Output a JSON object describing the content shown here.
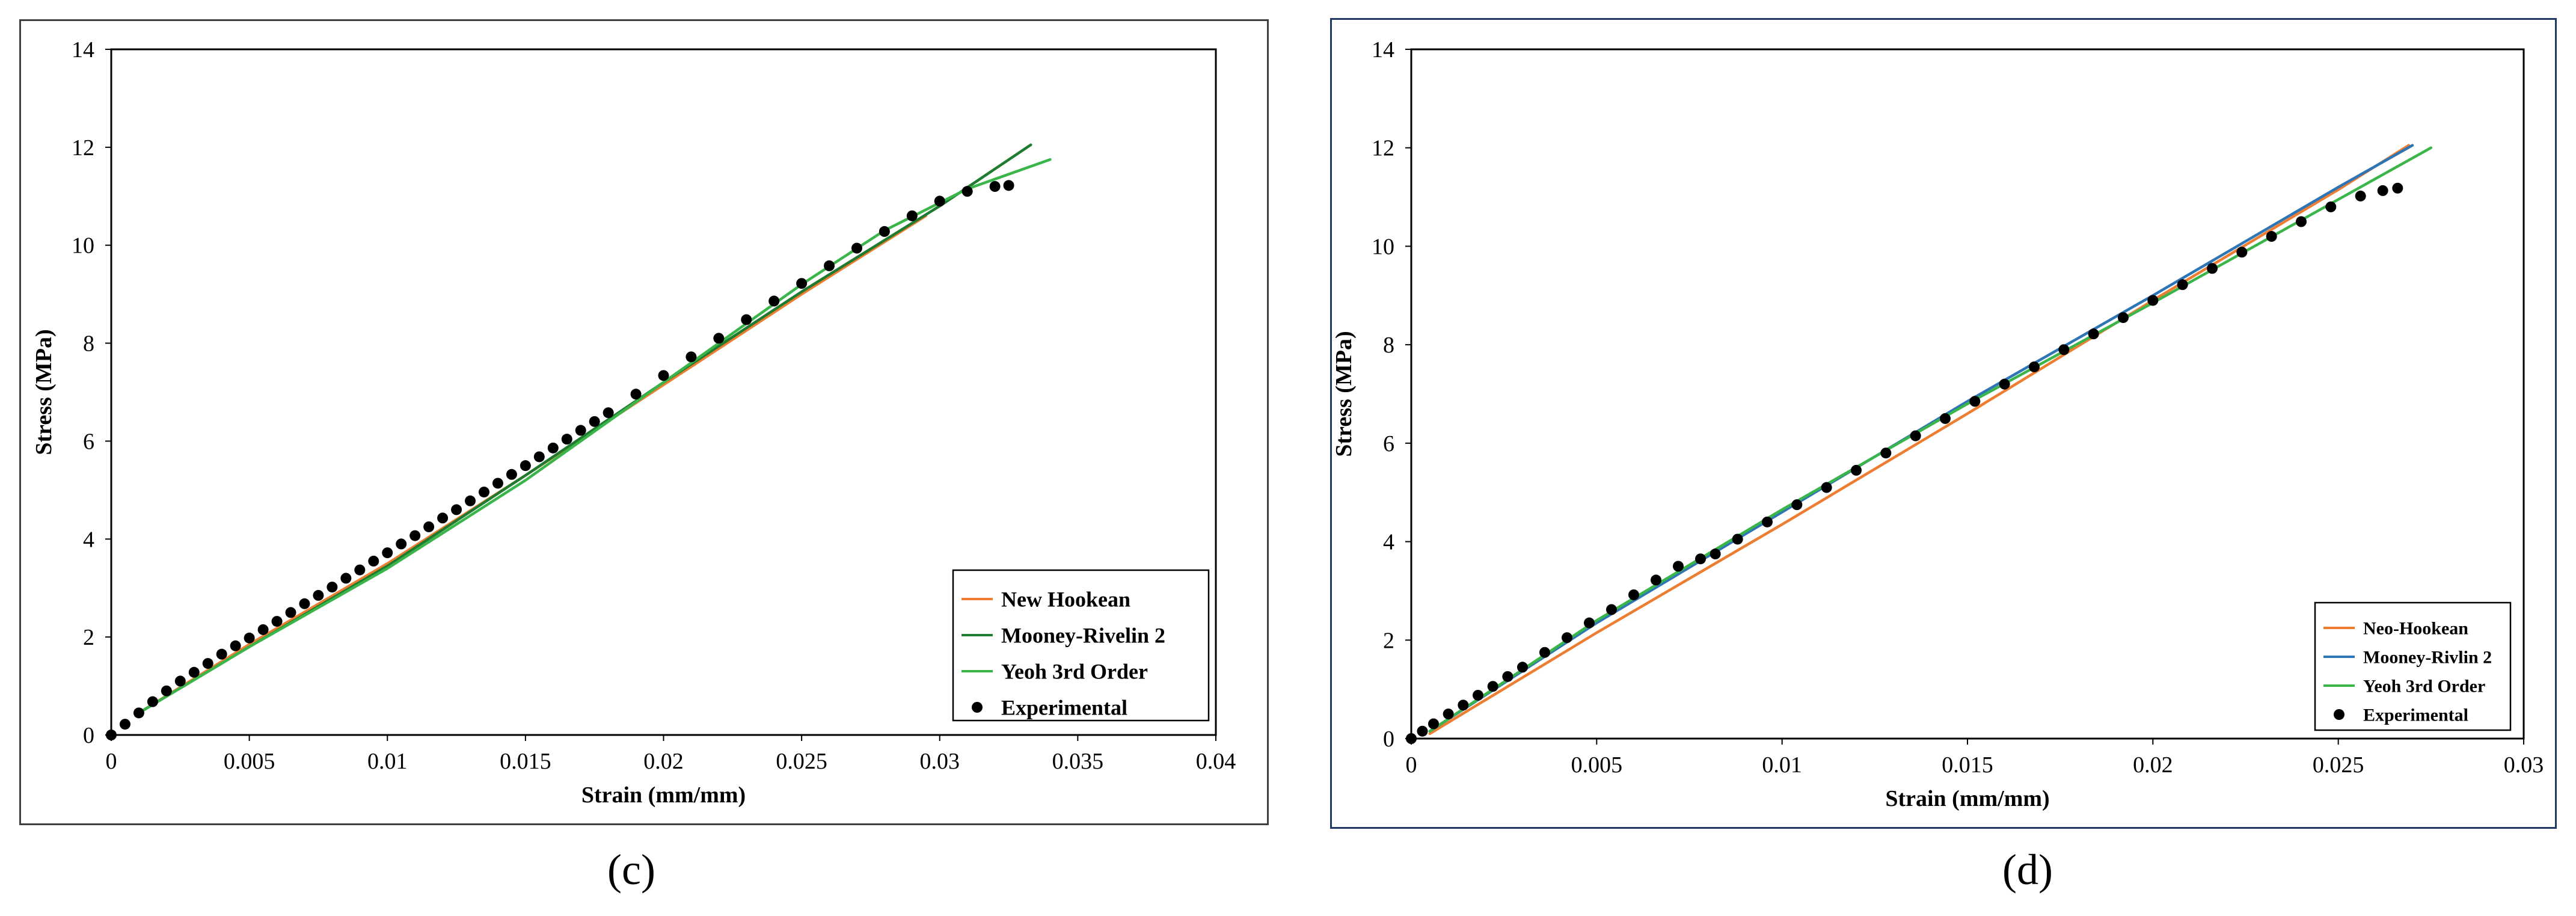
{
  "panels": [
    {
      "id": "c",
      "label": "(c)",
      "chart_data": {
        "type": "line",
        "xlabel": "Strain (mm/mm)",
        "ylabel": "Stress (MPa)",
        "xlim": [
          0,
          0.04
        ],
        "ylim": [
          0,
          14
        ],
        "xticks": [
          "0",
          "0.005",
          "0.01",
          "0.015",
          "0.02",
          "0.025",
          "0.03",
          "0.035",
          "0.04"
        ],
        "yticks": [
          "0",
          "2",
          "4",
          "6",
          "8",
          "10",
          "12",
          "14"
        ],
        "grid": false,
        "legend_position": "bottom-right",
        "series": [
          {
            "name": "New Hookean",
            "kind": "line",
            "color": "#ed7d31",
            "x": [
              0.001,
              0.005,
              0.01,
              0.015,
              0.02,
              0.025,
              0.0295
            ],
            "y": [
              0.45,
              1.85,
              3.5,
              5.3,
              7.15,
              9.0,
              10.6
            ]
          },
          {
            "name": "Mooney-Rivelin 2",
            "kind": "line",
            "color": "#1e7b30",
            "x": [
              0.001,
              0.005,
              0.01,
              0.015,
              0.02,
              0.025,
              0.03,
              0.0333
            ],
            "y": [
              0.45,
              1.8,
              3.45,
              5.3,
              7.2,
              9.05,
              10.8,
              12.05
            ]
          },
          {
            "name": "Yeoh 3rd Order",
            "kind": "line",
            "color": "#3ab54a",
            "x": [
              0.001,
              0.005,
              0.01,
              0.015,
              0.02,
              0.025,
              0.028,
              0.031,
              0.034
            ],
            "y": [
              0.45,
              1.8,
              3.4,
              5.2,
              7.2,
              9.2,
              10.3,
              11.15,
              11.75
            ]
          },
          {
            "name": "Experimental",
            "kind": "scatter",
            "color": "#000000",
            "x": [
              0,
              0.0005,
              0.001,
              0.0015,
              0.002,
              0.0025,
              0.003,
              0.0035,
              0.004,
              0.0045,
              0.005,
              0.0055,
              0.006,
              0.0065,
              0.007,
              0.0075,
              0.008,
              0.0085,
              0.009,
              0.0095,
              0.01,
              0.0105,
              0.011,
              0.0115,
              0.012,
              0.0125,
              0.013,
              0.0135,
              0.014,
              0.0145,
              0.015,
              0.0155,
              0.016,
              0.0165,
              0.017,
              0.0175,
              0.018,
              0.019,
              0.02,
              0.021,
              0.022,
              0.023,
              0.024,
              0.025,
              0.026,
              0.027,
              0.028,
              0.029,
              0.03,
              0.031,
              0.032,
              0.0325
            ],
            "y": [
              0,
              0.22,
              0.45,
              0.68,
              0.9,
              1.1,
              1.28,
              1.46,
              1.65,
              1.82,
              1.98,
              2.15,
              2.32,
              2.5,
              2.68,
              2.85,
              3.02,
              3.2,
              3.37,
              3.55,
              3.72,
              3.9,
              4.07,
              4.25,
              4.43,
              4.6,
              4.78,
              4.96,
              5.14,
              5.32,
              5.5,
              5.68,
              5.86,
              6.04,
              6.22,
              6.4,
              6.58,
              6.96,
              7.34,
              7.72,
              8.1,
              8.48,
              8.86,
              9.22,
              9.58,
              9.94,
              10.28,
              10.6,
              10.9,
              11.1,
              11.2,
              11.22
            ]
          }
        ]
      }
    },
    {
      "id": "d",
      "label": "(d)",
      "chart_data": {
        "type": "line",
        "xlabel": "Strain (mm/mm)",
        "ylabel": "Stress (MPa)",
        "xlim": [
          0,
          0.03
        ],
        "ylim": [
          0,
          14
        ],
        "xticks": [
          "0",
          "0.005",
          "0.01",
          "0.015",
          "0.02",
          "0.025",
          "0.03"
        ],
        "yticks": [
          "0",
          "2",
          "4",
          "6",
          "8",
          "10",
          "12",
          "14"
        ],
        "grid": false,
        "legend_position": "bottom-right",
        "series": [
          {
            "name": "Neo-Hookean",
            "kind": "line",
            "color": "#ed7d31",
            "x": [
              0.0005,
              0.005,
              0.01,
              0.015,
              0.02,
              0.025,
              0.0269
            ],
            "y": [
              0.1,
              2.15,
              4.35,
              6.6,
              8.9,
              11.15,
              12.05
            ]
          },
          {
            "name": "Mooney-Rivlin 2",
            "kind": "line",
            "color": "#2e75b6",
            "x": [
              0.0005,
              0.005,
              0.01,
              0.015,
              0.02,
              0.025,
              0.027
            ],
            "y": [
              0.15,
              2.35,
              4.6,
              6.85,
              9.0,
              11.2,
              12.05
            ]
          },
          {
            "name": "Yeoh 3rd Order",
            "kind": "line",
            "color": "#3ab54a",
            "x": [
              0.0005,
              0.005,
              0.01,
              0.015,
              0.02,
              0.025,
              0.0275
            ],
            "y": [
              0.15,
              2.4,
              4.65,
              6.8,
              8.85,
              10.95,
              12.0
            ]
          },
          {
            "name": "Experimental",
            "kind": "scatter",
            "color": "#000000",
            "x": [
              0,
              0.0003,
              0.0006,
              0.001,
              0.0014,
              0.0018,
              0.0022,
              0.0026,
              0.003,
              0.0036,
              0.0042,
              0.0048,
              0.0054,
              0.006,
              0.0066,
              0.0072,
              0.0078,
              0.0082,
              0.0088,
              0.0096,
              0.0104,
              0.0112,
              0.012,
              0.0128,
              0.0136,
              0.0144,
              0.0152,
              0.016,
              0.0168,
              0.0176,
              0.0184,
              0.0192,
              0.02,
              0.0208,
              0.0216,
              0.0224,
              0.0232,
              0.024,
              0.0248,
              0.0256,
              0.0262,
              0.0266
            ],
            "y": [
              0,
              0.15,
              0.3,
              0.5,
              0.68,
              0.88,
              1.06,
              1.26,
              1.45,
              1.75,
              2.05,
              2.35,
              2.62,
              2.92,
              3.22,
              3.5,
              3.65,
              3.75,
              4.05,
              4.4,
              4.75,
              5.1,
              5.45,
              5.8,
              6.15,
              6.5,
              6.85,
              7.2,
              7.55,
              7.9,
              8.22,
              8.55,
              8.9,
              9.22,
              9.55,
              9.88,
              10.2,
              10.5,
              10.8,
              11.02,
              11.13,
              11.18
            ]
          }
        ]
      }
    }
  ]
}
